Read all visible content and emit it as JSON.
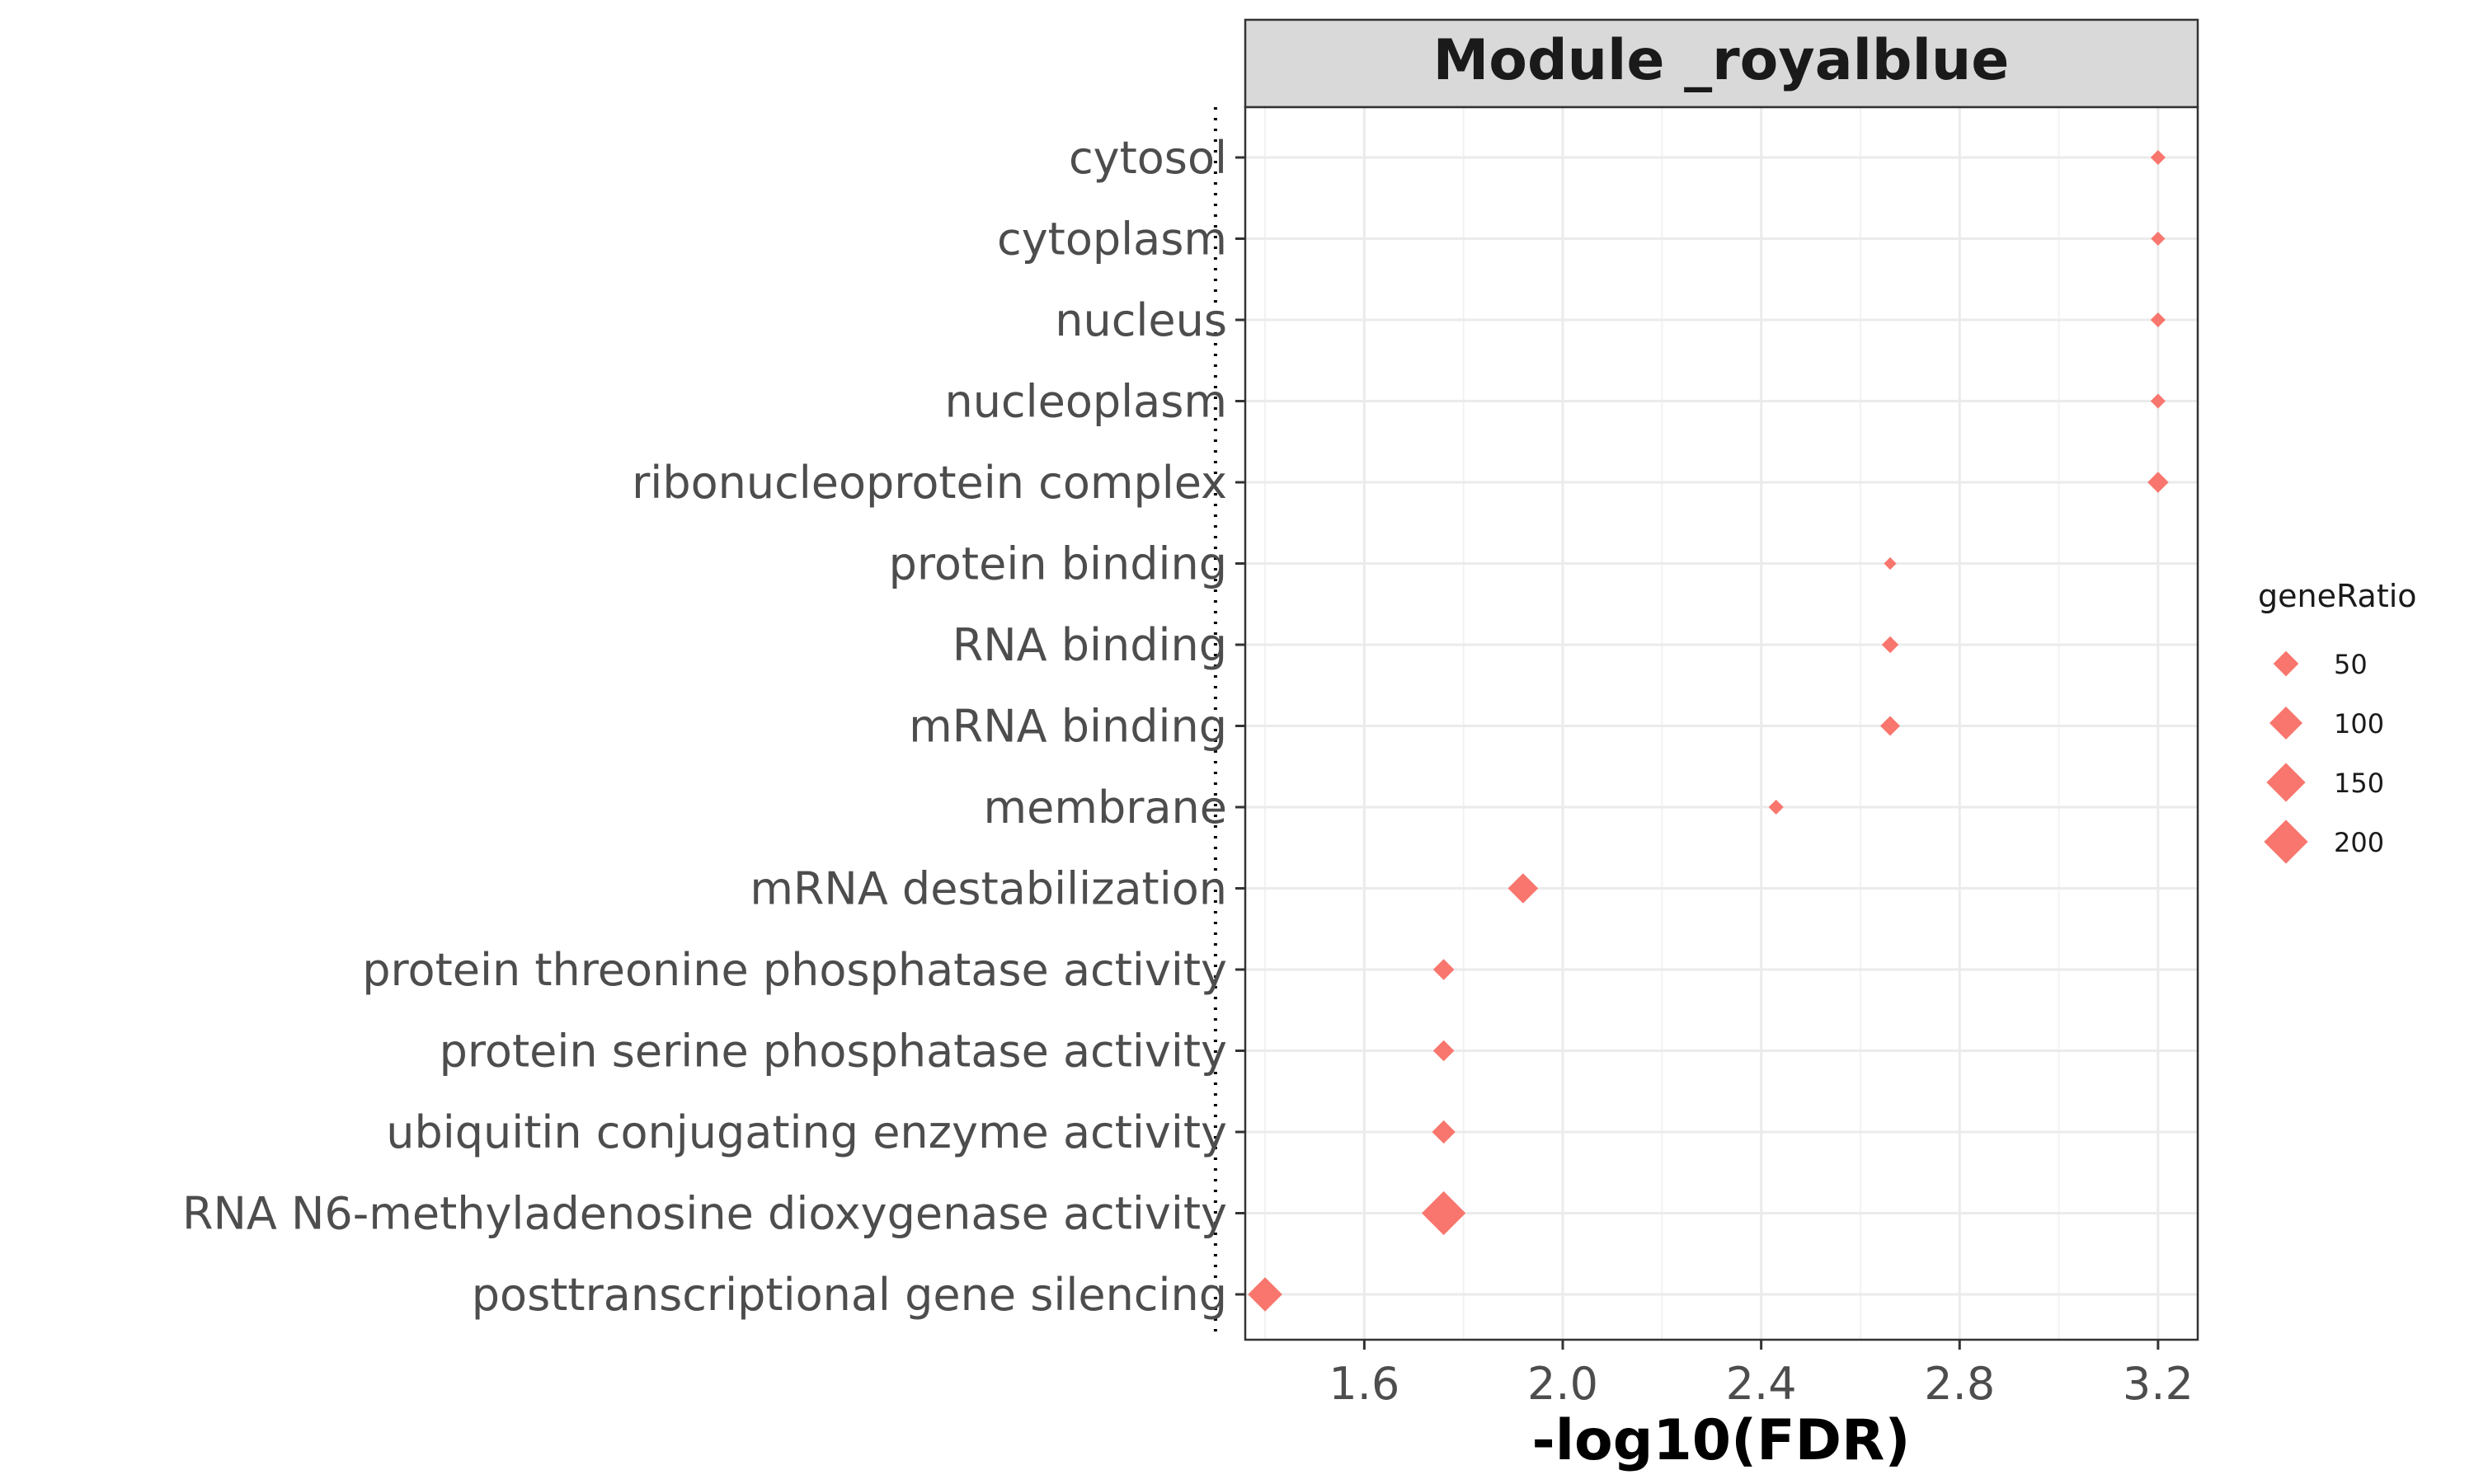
{
  "chart_data": {
    "type": "scatter",
    "facet_title": "Module _royalblue",
    "xlabel": "-log10(FDR)",
    "xlim": [
      1.36,
      3.28
    ],
    "xticks": [
      "1.6",
      "2.0",
      "2.4",
      "2.8",
      "3.2"
    ],
    "threshold_line": 1.3,
    "grid": true,
    "marker": "diamond",
    "point_color": "#F8766D",
    "categories": [
      "cytosol",
      "cytoplasm",
      "nucleus",
      "nucleoplasm",
      "ribonucleoprotein complex",
      "protein binding",
      "RNA binding",
      "mRNA binding",
      "membrane",
      "mRNA destabilization",
      "protein threonine phosphatase activity",
      "protein serine phosphatase activity",
      "ubiquitin conjugating enzyme activity",
      "RNA N6-methyladenosine dioxygenase activity",
      "posttranscriptional gene silencing"
    ],
    "points": [
      {
        "term": "cytosol",
        "x": 3.2,
        "size": 10
      },
      {
        "term": "cytoplasm",
        "x": 3.2,
        "size": 8
      },
      {
        "term": "nucleus",
        "x": 3.2,
        "size": 10
      },
      {
        "term": "nucleoplasm",
        "x": 3.2,
        "size": 10
      },
      {
        "term": "ribonucleoprotein complex",
        "x": 3.2,
        "size": 30
      },
      {
        "term": "protein binding",
        "x": 2.66,
        "size": 5
      },
      {
        "term": "RNA binding",
        "x": 2.66,
        "size": 15
      },
      {
        "term": "mRNA binding",
        "x": 2.66,
        "size": 25
      },
      {
        "term": "membrane",
        "x": 2.43,
        "size": 10
      },
      {
        "term": "mRNA destabilization",
        "x": 1.92,
        "size": 80
      },
      {
        "term": "protein threonine phosphatase activity",
        "x": 1.76,
        "size": 30
      },
      {
        "term": "protein serine phosphatase activity",
        "x": 1.76,
        "size": 30
      },
      {
        "term": "ubiquitin conjugating enzyme activity",
        "x": 1.76,
        "size": 40
      },
      {
        "term": "RNA N6-methyladenosine dioxygenase activity",
        "x": 1.76,
        "size": 200
      },
      {
        "term": "posttranscriptional gene silencing",
        "x": 1.4,
        "size": 110
      }
    ],
    "legend": {
      "title": "geneRatio",
      "position": "right",
      "entries": [
        {
          "label": "50",
          "size": 50
        },
        {
          "label": "100",
          "size": 100
        },
        {
          "label": "150",
          "size": 150
        },
        {
          "label": "200",
          "size": 200
        }
      ]
    }
  }
}
